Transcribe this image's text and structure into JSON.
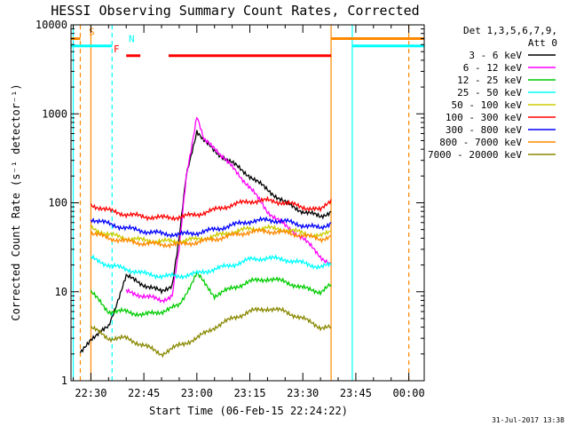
{
  "chart_data": {
    "type": "line",
    "title": "HESSI Observing Summary Count Rates, Corrected",
    "xlabel": "Start Time (06-Feb-15 22:24:22)",
    "ylabel": "Corrected Count Rate (s⁻¹ detector⁻¹)",
    "yscale": "log",
    "ylim": [
      1,
      10000
    ],
    "xlim": [
      "22:24:22",
      "00:04:22"
    ],
    "x_tick_labels": [
      "22:30",
      "22:45",
      "23:00",
      "23:15",
      "23:30",
      "23:45",
      "00:00"
    ],
    "y_tick_labels": [
      "1",
      "10",
      "100",
      "1000",
      "10000"
    ],
    "grid": false,
    "legend_header": [
      "Det 1,3,5,6,7,9,",
      "Att 0"
    ],
    "legend_position": "right",
    "series": [
      {
        "name": "3 - 6 keV",
        "color": "#000000",
        "x": [
          "22:27",
          "22:30",
          "22:35",
          "22:38",
          "22:40",
          "22:45",
          "22:50",
          "22:53",
          "22:55",
          "22:57",
          "23:00",
          "23:02",
          "23:05",
          "23:10",
          "23:15",
          "23:20",
          "23:25",
          "23:30",
          "23:35",
          "23:38"
        ],
        "y": [
          2,
          3,
          4,
          9,
          15,
          12,
          10,
          12,
          40,
          200,
          650,
          500,
          380,
          280,
          200,
          140,
          100,
          80,
          70,
          80
        ]
      },
      {
        "name": "6 - 12 keV",
        "color": "#ff00ff",
        "x": [
          "22:40",
          "22:45",
          "22:50",
          "22:53",
          "22:55",
          "22:57",
          "23:00",
          "23:02",
          "23:05",
          "23:10",
          "23:15",
          "23:20",
          "23:25",
          "23:30",
          "23:35",
          "23:38"
        ],
        "y": [
          10,
          9,
          8,
          9,
          30,
          200,
          950,
          500,
          420,
          250,
          150,
          80,
          55,
          40,
          25,
          20
        ]
      },
      {
        "name": "12 - 25 keV",
        "color": "#00cc00",
        "x": [
          "22:30",
          "22:35",
          "22:40",
          "22:45",
          "22:50",
          "22:55",
          "23:00",
          "23:05",
          "23:10",
          "23:15",
          "23:20",
          "23:25",
          "23:30",
          "23:35",
          "23:38"
        ],
        "y": [
          10,
          6,
          6,
          5.5,
          6,
          7,
          16,
          9,
          11,
          13,
          14,
          13,
          11,
          10,
          12
        ]
      },
      {
        "name": "25 - 50 keV",
        "color": "#00ffff",
        "x": [
          "22:30",
          "22:35",
          "22:40",
          "22:45",
          "22:50",
          "22:55",
          "23:00",
          "23:05",
          "23:10",
          "23:15",
          "23:20",
          "23:25",
          "23:30",
          "23:35",
          "23:38"
        ],
        "y": [
          24,
          20,
          18,
          16,
          15,
          15,
          16,
          18,
          20,
          23,
          24,
          23,
          21,
          19,
          20
        ]
      },
      {
        "name": "50 - 100 keV",
        "color": "#cccc00",
        "x": [
          "22:30",
          "22:35",
          "22:40",
          "22:45",
          "22:50",
          "22:55",
          "23:00",
          "23:05",
          "23:10",
          "23:15",
          "23:20",
          "23:25",
          "23:30",
          "23:35",
          "23:38"
        ],
        "y": [
          52,
          44,
          40,
          38,
          37,
          37,
          39,
          42,
          47,
          51,
          52,
          50,
          46,
          42,
          48
        ]
      },
      {
        "name": "100 - 300 keV",
        "color": "#ff0000",
        "x": [
          "22:30",
          "22:35",
          "22:40",
          "22:45",
          "22:50",
          "22:55",
          "23:00",
          "23:05",
          "23:10",
          "23:15",
          "23:20",
          "23:25",
          "23:30",
          "23:35",
          "23:38"
        ],
        "y": [
          95,
          82,
          74,
          70,
          68,
          69,
          74,
          83,
          95,
          104,
          106,
          100,
          90,
          82,
          110
        ]
      },
      {
        "name": "300 - 800 keV",
        "color": "#0000ff",
        "x": [
          "22:30",
          "22:35",
          "22:40",
          "22:45",
          "22:50",
          "22:55",
          "23:00",
          "23:05",
          "23:10",
          "23:15",
          "23:20",
          "23:25",
          "23:30",
          "23:35",
          "23:38"
        ],
        "y": [
          66,
          58,
          52,
          48,
          45,
          44,
          46,
          50,
          56,
          62,
          64,
          62,
          56,
          52,
          60
        ]
      },
      {
        "name": "800 - 7000 keV",
        "color": "#ff8800",
        "x": [
          "22:30",
          "22:35",
          "22:40",
          "22:45",
          "22:50",
          "22:55",
          "23:00",
          "23:05",
          "23:10",
          "23:15",
          "23:20",
          "23:25",
          "23:30",
          "23:35",
          "23:38"
        ],
        "y": [
          46,
          40,
          37,
          35,
          34,
          34,
          36,
          39,
          43,
          47,
          48,
          46,
          43,
          39,
          42
        ]
      },
      {
        "name": "7000 - 20000 keV",
        "color": "#888800",
        "x": [
          "22:30",
          "22:35",
          "22:40",
          "22:45",
          "22:50",
          "22:55",
          "23:00",
          "23:05",
          "23:10",
          "23:15",
          "23:20",
          "23:25",
          "23:30",
          "23:35",
          "23:38"
        ],
        "y": [
          4,
          3,
          3,
          2.5,
          2,
          2.5,
          3,
          4,
          5,
          6,
          6.5,
          6,
          5,
          4,
          4
        ]
      }
    ],
    "flag_bars": [
      {
        "label": "S",
        "color": "#ff8800",
        "y": 7000,
        "segments": [
          [
            "22:24:22",
            "22:27"
          ],
          [
            "23:38",
            "00:04:22"
          ]
        ]
      },
      {
        "label": "N",
        "color": "#00ffff",
        "y": 5800,
        "segments": [
          [
            "22:24:22",
            "22:36"
          ],
          [
            "23:44",
            "00:04:22"
          ]
        ]
      },
      {
        "label": "F",
        "color": "#ff0000",
        "y": 4500,
        "segments": [
          [
            "22:40",
            "22:44"
          ],
          [
            "22:52",
            "23:38"
          ]
        ]
      }
    ],
    "vertical_lines": [
      {
        "x": "22:25",
        "color": "#00ffff",
        "style": "solid"
      },
      {
        "x": "22:27",
        "color": "#ff8800",
        "style": "dashed"
      },
      {
        "x": "22:36",
        "color": "#00ffff",
        "style": "dashed"
      },
      {
        "x": "22:30",
        "color": "#ff8800",
        "style": "solid"
      },
      {
        "x": "23:38",
        "color": "#ff8800",
        "style": "solid"
      },
      {
        "x": "23:44",
        "color": "#00ffff",
        "style": "solid"
      },
      {
        "x": "00:00",
        "color": "#ff8800",
        "style": "dashed"
      }
    ],
    "footer_date": "31-Jul-2017 13:38"
  }
}
